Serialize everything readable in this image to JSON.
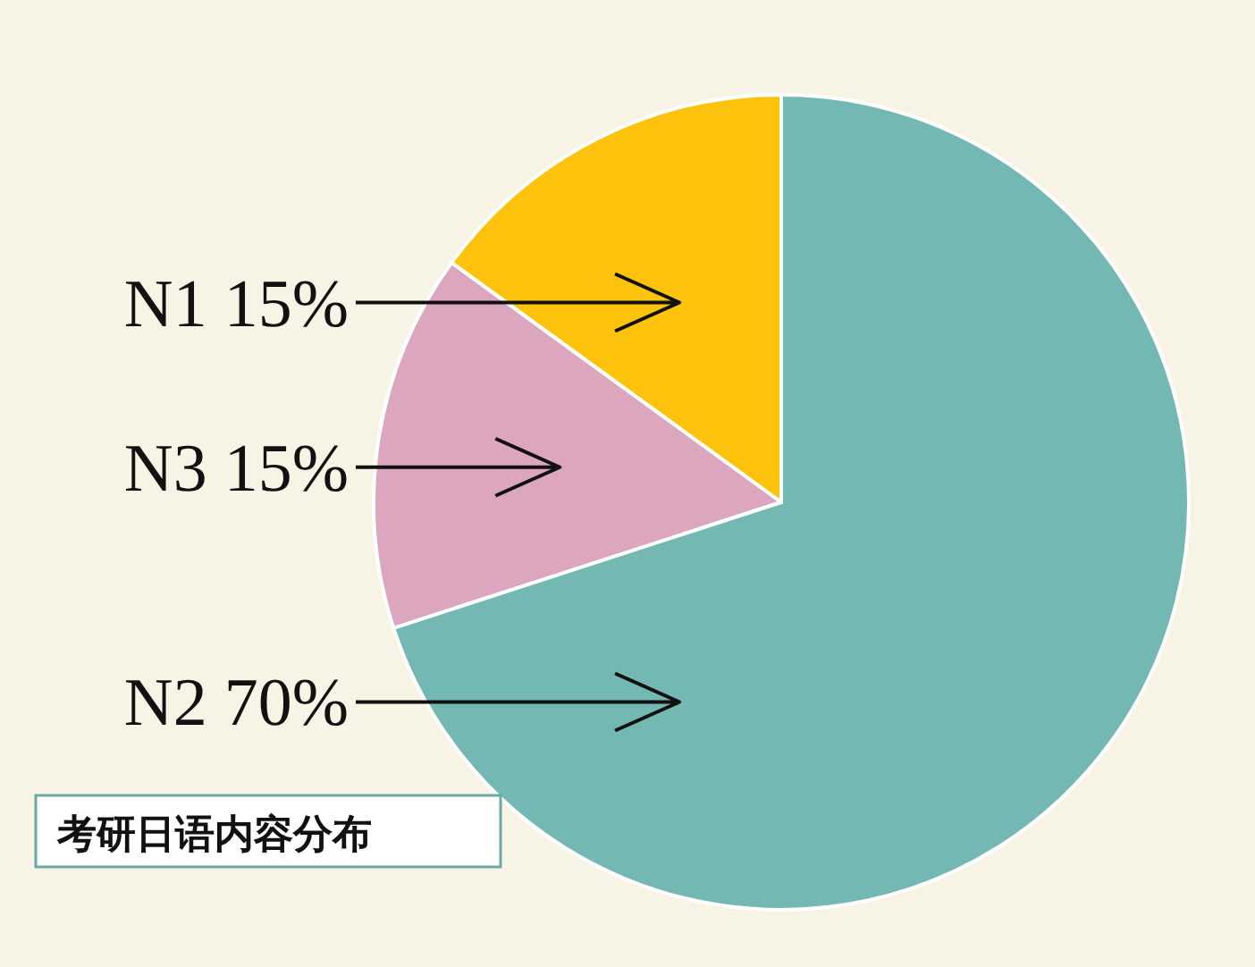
{
  "chart_data": {
    "type": "pie",
    "title": "考研日语内容分布",
    "categories": [
      "N1",
      "N3",
      "N2"
    ],
    "values": [
      15,
      15,
      70
    ],
    "value_labels": [
      "15%",
      "15%",
      "70%"
    ],
    "colors": [
      "#fcc20c",
      "#dca7be",
      "#74b8b3"
    ]
  }
}
